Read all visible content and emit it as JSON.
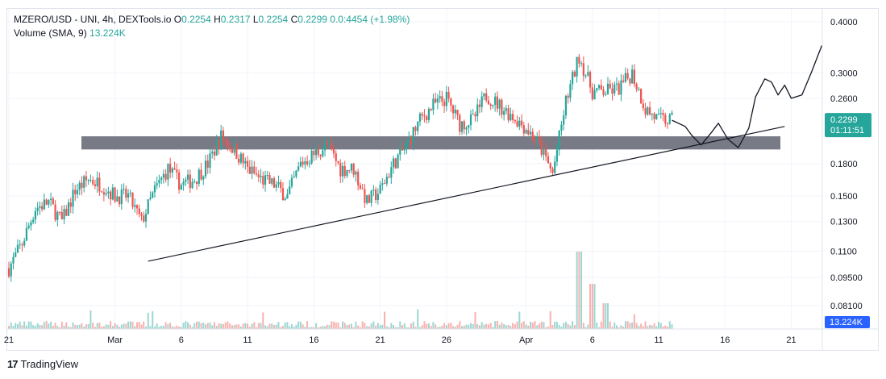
{
  "legend": {
    "symbol": "MZERO/USD - UNI, 4h, DEXTools.io",
    "open_label": "O",
    "open": "0.2254",
    "high_label": "H",
    "high": "0.2317",
    "low_label": "L",
    "low": "0.2254",
    "close_label": "C",
    "close": "0.2299",
    "change": "0.0:4454 (+1.98%)",
    "volume_label": "Volume (SMA, 9)",
    "volume_value": "13.224K"
  },
  "price_badge": {
    "price": "0.2299",
    "countdown": "01:11:51",
    "color": "#26a69a"
  },
  "volume_badge": {
    "value": "13.224K",
    "color": "#2962ff"
  },
  "footer": {
    "brand": "TradingView"
  },
  "colors": {
    "up": "#26a69a",
    "down": "#ef5350",
    "grid": "#f0f3fa",
    "zone": "#787b86",
    "line": "#131722"
  },
  "chart_data": {
    "type": "candlestick",
    "title": "MZERO/USD - UNI, 4h, DEXTools.io",
    "y_scale": "log",
    "ylim": [
      0.07,
      0.42
    ],
    "y_ticks": [
      "0.4000",
      "0.3000",
      "0.2600",
      "0.1800",
      "0.1500",
      "0.1300",
      "0.1100",
      "0.09500",
      "0.08100"
    ],
    "x_ticks": [
      {
        "label": "21",
        "day": 0
      },
      {
        "label": "Mar",
        "day": 8
      },
      {
        "label": "6",
        "day": 13
      },
      {
        "label": "11",
        "day": 18
      },
      {
        "label": "16",
        "day": 23
      },
      {
        "label": "21",
        "day": 28
      },
      {
        "label": "26",
        "day": 33
      },
      {
        "label": "Apr",
        "day": 39
      },
      {
        "label": "6",
        "day": 44
      },
      {
        "label": "11",
        "day": 49
      },
      {
        "label": "16",
        "day": 54
      },
      {
        "label": "21",
        "day": 59
      }
    ],
    "price_path": [
      [
        0,
        0.1
      ],
      [
        1,
        0.115
      ],
      [
        2,
        0.14
      ],
      [
        3,
        0.145
      ],
      [
        4,
        0.13
      ],
      [
        5,
        0.155
      ],
      [
        6,
        0.165
      ],
      [
        7,
        0.16
      ],
      [
        8,
        0.15
      ],
      [
        9,
        0.15
      ],
      [
        10,
        0.13
      ],
      [
        11,
        0.155
      ],
      [
        12,
        0.175
      ],
      [
        13,
        0.16
      ],
      [
        14,
        0.165
      ],
      [
        15,
        0.18
      ],
      [
        16,
        0.21
      ],
      [
        17,
        0.195
      ],
      [
        18,
        0.175
      ],
      [
        19,
        0.165
      ],
      [
        20,
        0.16
      ],
      [
        21,
        0.15
      ],
      [
        22,
        0.18
      ],
      [
        23,
        0.19
      ],
      [
        24,
        0.2
      ],
      [
        25,
        0.175
      ],
      [
        26,
        0.175
      ],
      [
        27,
        0.145
      ],
      [
        28,
        0.155
      ],
      [
        29,
        0.18
      ],
      [
        30,
        0.2
      ],
      [
        31,
        0.23
      ],
      [
        32,
        0.25
      ],
      [
        33,
        0.26
      ],
      [
        34,
        0.225
      ],
      [
        35,
        0.23
      ],
      [
        36,
        0.265
      ],
      [
        37,
        0.25
      ],
      [
        38,
        0.235
      ],
      [
        39,
        0.22
      ],
      [
        40,
        0.2
      ],
      [
        41,
        0.17
      ],
      [
        42,
        0.255
      ],
      [
        43,
        0.33
      ],
      [
        44,
        0.27
      ],
      [
        45,
        0.27
      ],
      [
        46,
        0.275
      ],
      [
        47,
        0.3
      ],
      [
        48,
        0.245
      ],
      [
        49,
        0.23
      ],
      [
        50,
        0.2299
      ]
    ],
    "annotations": {
      "resistance_zone": [
        0.195,
        0.21
      ],
      "trendline": [
        [
          10.5,
          0.104
        ],
        [
          58.5,
          0.222
        ]
      ],
      "projection": [
        [
          50,
          0.2299
        ],
        [
          51,
          0.222
        ],
        [
          51.5,
          0.211
        ],
        [
          52.2,
          0.2
        ],
        [
          53,
          0.215
        ],
        [
          53.5,
          0.226
        ],
        [
          54.2,
          0.207
        ],
        [
          55,
          0.197
        ],
        [
          55.8,
          0.22
        ],
        [
          56.3,
          0.262
        ],
        [
          57,
          0.29
        ],
        [
          57.5,
          0.285
        ],
        [
          58,
          0.265
        ],
        [
          58.5,
          0.28
        ],
        [
          59,
          0.26
        ],
        [
          59.8,
          0.265
        ],
        [
          60.5,
          0.3
        ],
        [
          61.3,
          0.35
        ]
      ]
    },
    "volume_peaks": [
      [
        43,
        0.6
      ],
      [
        44,
        0.35
      ],
      [
        45,
        0.2
      ]
    ]
  }
}
